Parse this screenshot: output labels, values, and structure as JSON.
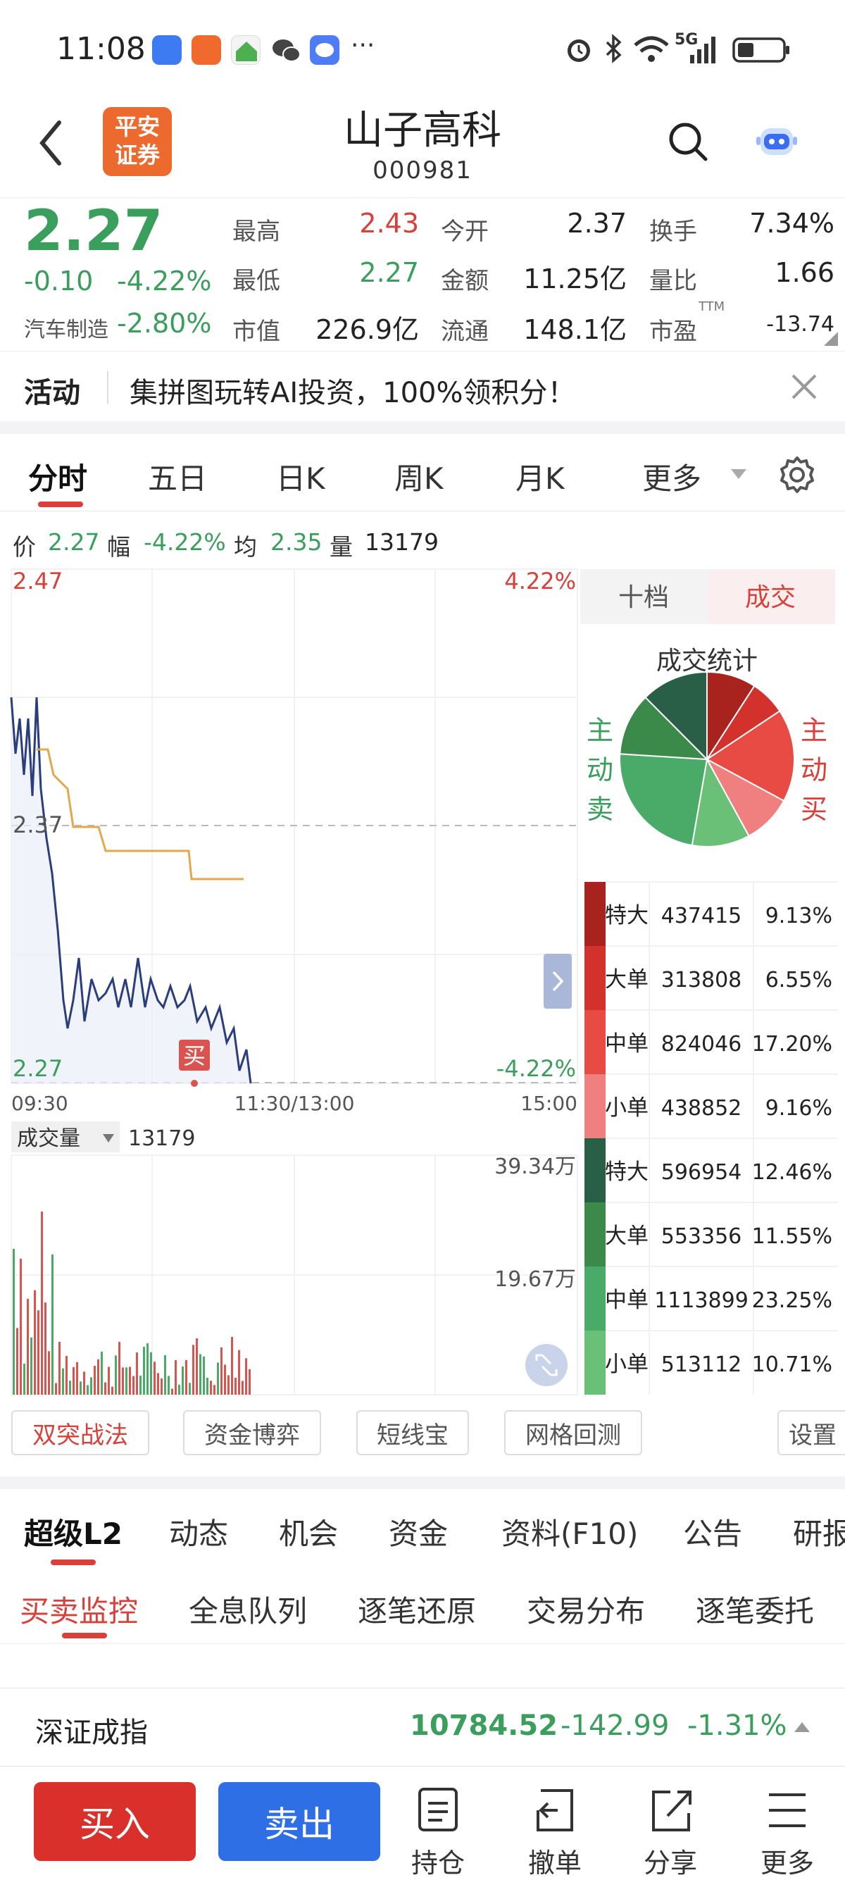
{
  "status_bar": {
    "time": "11:08",
    "network": "5G"
  },
  "header": {
    "title": "山子高科",
    "code": "000981",
    "logo_text": "平安\n证券"
  },
  "quote": {
    "price": "2.27",
    "change": "-0.10",
    "change_pct": "-4.22%",
    "sector_name": "汽车制造",
    "sector_pct": "-2.80%",
    "high_label": "最高",
    "high": "2.43",
    "open_label": "今开",
    "open": "2.37",
    "turnover_label": "换手",
    "turnover": "7.34%",
    "low_label": "最低",
    "low": "2.27",
    "amount_label": "金额",
    "amount": "11.25亿",
    "vol_ratio_label": "量比",
    "vol_ratio": "1.66",
    "mcap_label": "市值",
    "mcap": "226.9亿",
    "float_label": "流通",
    "float": "148.1亿",
    "pe_label": "市盈",
    "pe_sup": "TTM",
    "pe": "-13.74"
  },
  "banner": {
    "tag": "活动",
    "text": "集拼图玩转AI投资，100%领积分！"
  },
  "chart_tabs": [
    "分时",
    "五日",
    "日K",
    "周K",
    "月K",
    "更多"
  ],
  "info_line": {
    "price_label": "价",
    "price": "2.27",
    "amp_label": "幅",
    "amp": "-4.22%",
    "avg_label": "均",
    "avg": "2.35",
    "vol_label": "量",
    "vol": "13179"
  },
  "intraday": {
    "y_top": "2.47",
    "y_mid": "2.37",
    "y_bottom": "2.27",
    "pct_top": "4.22%",
    "pct_bottom": "-4.22%",
    "t_start": "09:30",
    "t_mid": "11:30/13:00",
    "t_end": "15:00",
    "buy_marker": "买",
    "vol_label": "成交量",
    "vol_value": "13179",
    "vol_max": "39.34万",
    "vol_mid": "19.67万"
  },
  "side_panel": {
    "tab1": "十档",
    "tab2": "成交",
    "stat_title": "成交统计",
    "sell_label": "主动卖",
    "buy_label": "主动买"
  },
  "chart_data": {
    "type": "pie",
    "categories": [
      "特大",
      "大单",
      "中单",
      "小单",
      "特大",
      "大单",
      "中单",
      "小单"
    ],
    "values": [
      437415,
      313808,
      824046,
      438852,
      596954,
      553356,
      1113899,
      513112
    ],
    "percents": [
      "9.13%",
      "6.55%",
      "17.20%",
      "9.16%",
      "12.46%",
      "11.55%",
      "23.25%",
      "10.71%"
    ],
    "values_text": [
      "437415",
      "313808",
      "824046",
      "438852",
      "596954",
      "553356",
      "1113899",
      "513112"
    ],
    "colors": [
      "#a8221e",
      "#d3322c",
      "#e84a44",
      "#f08080",
      "#2a5f47",
      "#3b8a49",
      "#4aaa68",
      "#6bc078"
    ]
  },
  "strategy_buttons": [
    "双突战法",
    "资金博弈",
    "短线宝",
    "网格回测",
    "设置"
  ],
  "info_tabs": [
    "超级L2",
    "动态",
    "机会",
    "资金",
    "资料(F10)",
    "公告",
    "研报"
  ],
  "sub_tabs": [
    "买卖监控",
    "全息队列",
    "逐笔还原",
    "交易分布",
    "逐笔委托"
  ],
  "index_bar": {
    "name": "深证成指",
    "value": "10784.52",
    "change": "-142.99",
    "pct": "-1.31%"
  },
  "footer": {
    "buy": "买入",
    "sell": "卖出",
    "hold": "持仓",
    "cancel": "撤单",
    "share": "分享",
    "more": "更多"
  }
}
